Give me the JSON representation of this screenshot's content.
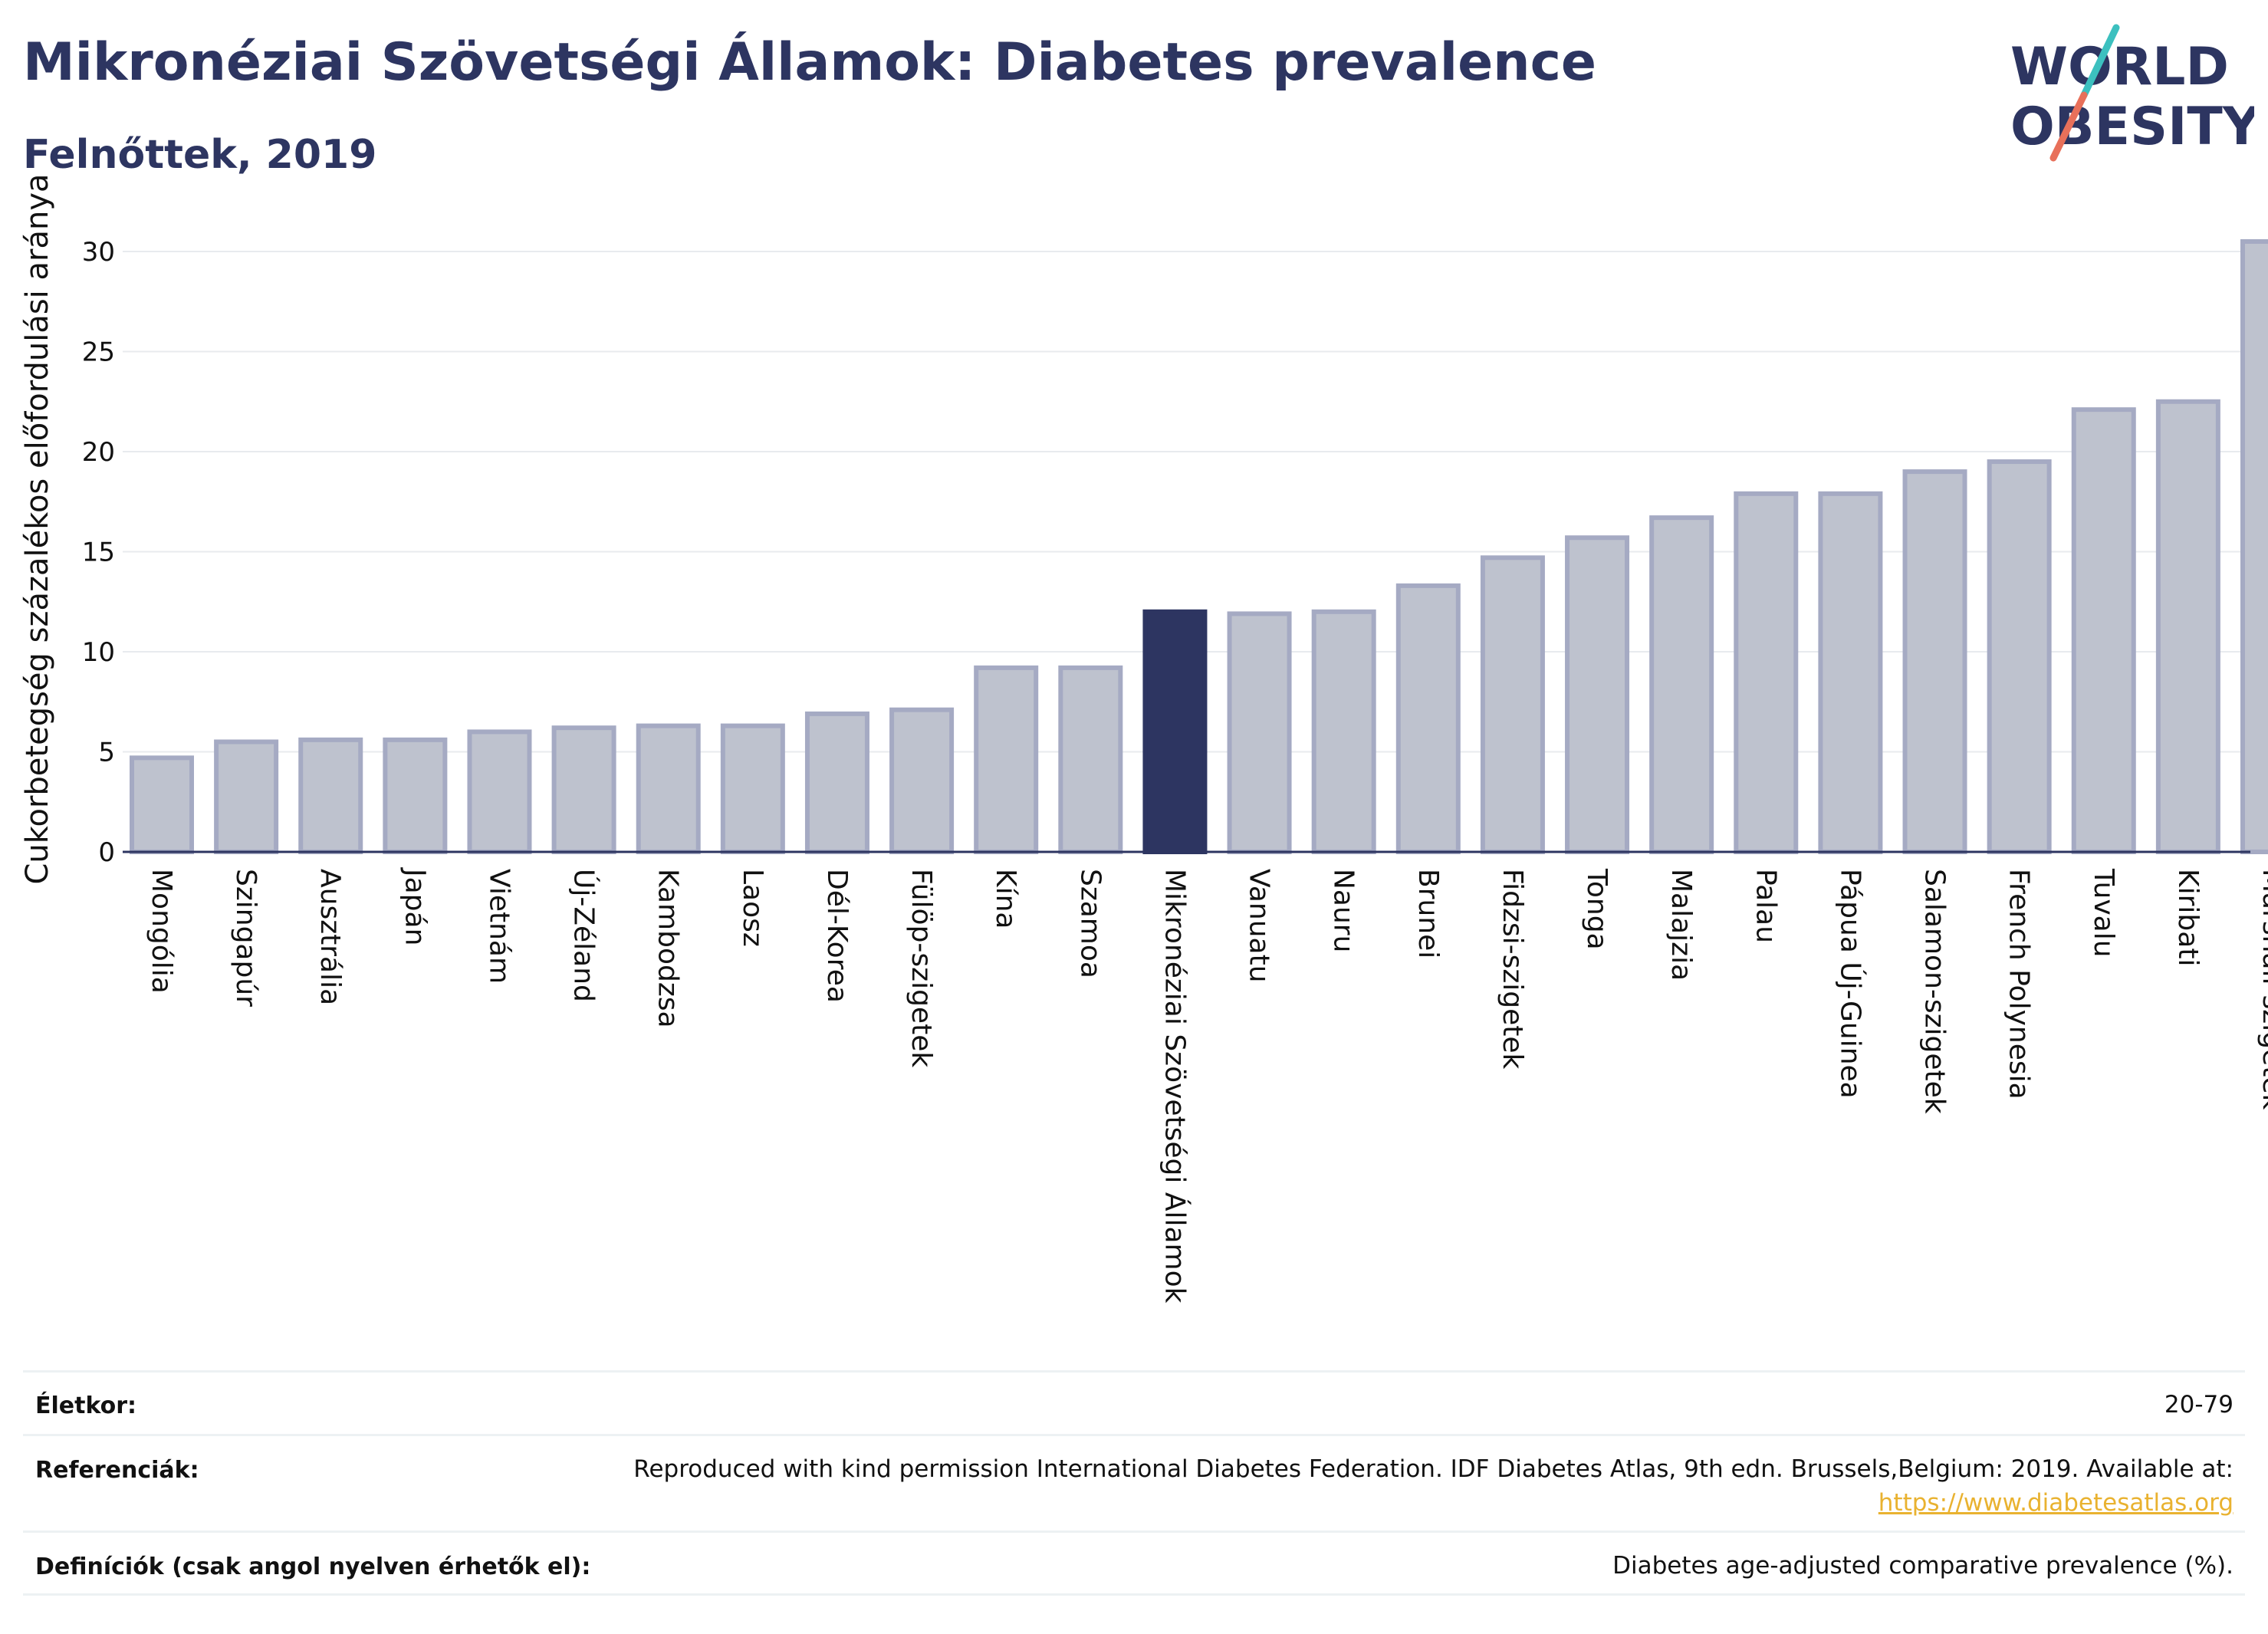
{
  "header": {
    "title": "Mikronéziai Szövetségi Államok: Diabetes prevalence",
    "subtitle": "Felnőttek, 2019"
  },
  "logo": {
    "text_line1": "WORLD",
    "text_line2": "OBESITY"
  },
  "colors": {
    "highlight": "#2d3561",
    "bar_fill": "#bec2ce",
    "bar_stroke": "#a5aac3",
    "axis": "#2d3561",
    "grid": "#e8ebee",
    "logo_teal": "#3cc0bf",
    "logo_coral": "#e8705a"
  },
  "chart_data": {
    "type": "bar",
    "title": "Mikronéziai Szövetségi Államok: Diabetes prevalence",
    "subtitle": "Felnőttek, 2019",
    "ylabel": "Cukorbetegség százalékos előfordulási aránya",
    "xlabel": "",
    "ylim": [
      0,
      31.5
    ],
    "yticks": [
      0,
      5,
      10,
      15,
      20,
      25,
      30
    ],
    "grid": true,
    "highlight_category": "Mikronéziai Szövetségi Államok",
    "categories": [
      "Mongólia",
      "Szingapúr",
      "Ausztrália",
      "Japán",
      "Vietnám",
      "Új-Zéland",
      "Kambodzsa",
      "Laosz",
      "Dél-Korea",
      "Fülöp-szigetek",
      "Kína",
      "Szamoa",
      "Mikronéziai Szövetségi Államok",
      "Vanuatu",
      "Nauru",
      "Brunei",
      "Fidzsi-szigetek",
      "Tonga",
      "Malajzia",
      "Palau",
      "Pápua Új-Guinea",
      "Salamon-szigetek",
      "French Polynesia",
      "Tuvalu",
      "Kiribati",
      "Marshall-szigetek"
    ],
    "values": [
      4.7,
      5.5,
      5.6,
      5.6,
      6.0,
      6.2,
      6.3,
      6.3,
      6.9,
      7.1,
      9.2,
      9.2,
      12.0,
      11.9,
      12.0,
      13.3,
      14.7,
      15.7,
      16.7,
      17.9,
      17.9,
      19.0,
      19.5,
      22.1,
      22.5,
      30.5
    ]
  },
  "footer": {
    "age_label": "Életkor:",
    "age_value": "20-79",
    "ref_label": "Referenciák:",
    "ref_text": "Reproduced with kind permission International Diabetes Federation. IDF Diabetes Atlas, 9th edn. Brussels,Belgium: 2019. Available at:",
    "ref_link": "https://www.diabetesatlas.org",
    "def_label": "Definíciók (csak angol nyelven érhetők el):",
    "def_value": "Diabetes age-adjusted comparative prevalence (%)."
  }
}
